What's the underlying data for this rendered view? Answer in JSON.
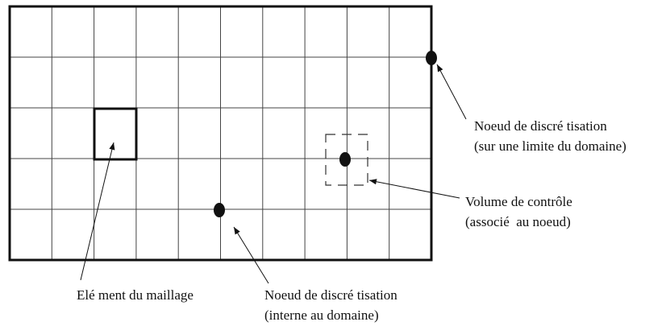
{
  "labels": {
    "element": "Elé ment du maillage",
    "internal_node": {
      "line1": "Noeud de discré tisation",
      "line2": "(interne au domaine)"
    },
    "boundary_node": {
      "line1": "Noeud de discré tisation",
      "line2": "(sur une limite du domaine)"
    },
    "control_volume": {
      "line1": "Volume de contrôle",
      "line2": "(associé  au noeud)"
    }
  }
}
